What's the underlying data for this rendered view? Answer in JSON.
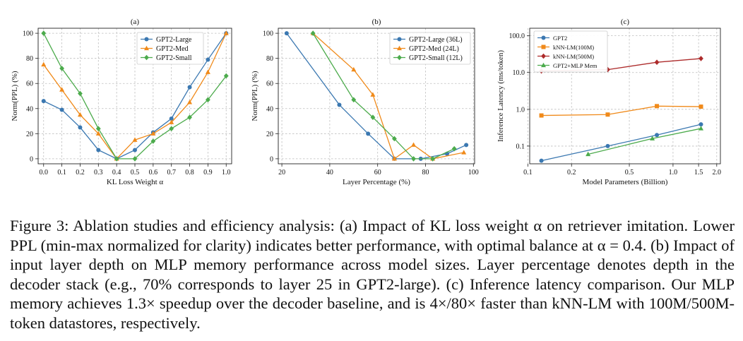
{
  "caption": "Figure 3: Ablation studies and efficiency analysis: (a) Impact of KL loss weight α on retriever imitation. Lower PPL (min-max normalized for clarity) indicates better performance, with optimal balance at α = 0.4. (b) Impact of input layer depth on MLP memory performance across model sizes. Layer percentage denotes depth in the decoder stack (e.g., 70% corresponds to layer 25 in GPT2-large). (c) Inference latency comparison. Our MLP memory achieves 1.3× speedup over the decoder baseline, and is 4×/80× faster than kNN-LM with 100M/500M-token datastores, respectively.",
  "colors": {
    "blue": "#3b78b1",
    "orange": "#f08a1a",
    "green": "#4cab4c",
    "red": "#ad2b2b"
  },
  "chart_data": [
    {
      "type": "line",
      "title": "(a)",
      "xlabel": "KL Loss Weight α",
      "ylabel": "Norm(PPL) (%)",
      "xlim": [
        -0.03,
        1.03
      ],
      "ylim": [
        -4,
        104
      ],
      "xticks": [
        0.0,
        0.1,
        0.2,
        0.3,
        0.4,
        0.5,
        0.6,
        0.7,
        0.8,
        0.9,
        1.0
      ],
      "xtick_labels": [
        "0.0",
        "0.1",
        "0.2",
        "0.3",
        "0.4",
        "0.5",
        "0.6",
        "0.7",
        "0.8",
        "0.9",
        "1.0"
      ],
      "yticks": [
        0,
        20,
        40,
        60,
        80,
        100
      ],
      "ytick_labels": [
        "0",
        "20",
        "40",
        "60",
        "80",
        "100"
      ],
      "grid": true,
      "legend": "top-center",
      "series": [
        {
          "name": "GPT2-Large",
          "color": "#3b78b1",
          "marker": "circle",
          "x": [
            0.0,
            0.1,
            0.2,
            0.3,
            0.4,
            0.5,
            0.6,
            0.7,
            0.8,
            0.9,
            1.0
          ],
          "y": [
            46,
            39,
            25,
            7,
            0,
            7,
            21,
            32,
            57,
            79,
            100
          ]
        },
        {
          "name": "GPT2-Med",
          "color": "#f08a1a",
          "marker": "triangle",
          "x": [
            0.0,
            0.1,
            0.2,
            0.3,
            0.4,
            0.5,
            0.6,
            0.7,
            0.8,
            0.9,
            1.0
          ],
          "y": [
            75,
            55,
            35,
            20,
            0,
            15,
            20,
            29,
            45,
            69,
            100
          ]
        },
        {
          "name": "GPT2-Small",
          "color": "#4cab4c",
          "marker": "diamond",
          "x": [
            0.0,
            0.1,
            0.2,
            0.3,
            0.4,
            0.5,
            0.6,
            0.7,
            0.8,
            0.9,
            1.0
          ],
          "y": [
            100,
            72,
            52,
            24,
            0,
            0,
            14,
            24,
            33,
            47,
            66
          ]
        }
      ]
    },
    {
      "type": "line",
      "title": "(b)",
      "xlabel": "Layer Percentage (%)",
      "ylabel": "Norm(PPL) (%)",
      "xlim": [
        18.5,
        100.5
      ],
      "ylim": [
        -4,
        104
      ],
      "xticks": [
        20,
        40,
        60,
        80,
        100
      ],
      "xtick_labels": [
        "20",
        "40",
        "60",
        "80",
        "100"
      ],
      "yticks": [
        0,
        20,
        40,
        60,
        80,
        100
      ],
      "ytick_labels": [
        "0",
        "20",
        "40",
        "60",
        "80",
        "100"
      ],
      "grid": true,
      "legend": "top-right",
      "series": [
        {
          "name": "GPT2-Large (36L)",
          "color": "#3b78b1",
          "marker": "circle",
          "x": [
            22,
            44,
            56,
            67,
            78,
            89,
            97
          ],
          "y": [
            100,
            43,
            20,
            0,
            0,
            4,
            11
          ]
        },
        {
          "name": "GPT2-Med (24L)",
          "color": "#f08a1a",
          "marker": "triangle",
          "x": [
            33,
            50,
            58,
            67,
            75,
            83,
            96
          ],
          "y": [
            100,
            71,
            51,
            0,
            11,
            0,
            5
          ]
        },
        {
          "name": "GPT2-Small (12L)",
          "color": "#4cab4c",
          "marker": "diamond",
          "x": [
            33,
            50,
            58,
            67,
            75,
            83,
            92
          ],
          "y": [
            100,
            47,
            33,
            16,
            0,
            0,
            8
          ]
        }
      ]
    },
    {
      "type": "line",
      "title": "(c)",
      "xlabel": "Model Parameters (Billion)",
      "ylabel": "Inference Latency (ms/token)",
      "xscale": "log",
      "yscale": "log",
      "xlim": [
        0.103,
        2.12
      ],
      "ylim": [
        0.033,
        160
      ],
      "xticks": [
        0.1,
        0.2,
        0.5,
        1.0,
        1.5,
        2.0
      ],
      "xtick_labels": [
        "0.1",
        "0.2",
        "0.5",
        "1.0",
        "1.5",
        "2.0"
      ],
      "yticks": [
        0.1,
        1.0,
        10.0,
        100.0
      ],
      "ytick_labels": [
        "0.1",
        "1.0",
        "10.0",
        "100.0"
      ],
      "grid": true,
      "legend": "top-left",
      "series": [
        {
          "name": "GPT2",
          "color": "#3b78b1",
          "marker": "circle",
          "x": [
            0.124,
            0.355,
            0.774,
            1.558
          ],
          "y": [
            0.04,
            0.1,
            0.2,
            0.39
          ]
        },
        {
          "name": "kNN-LM(100M)",
          "color": "#f08a1a",
          "marker": "square",
          "x": [
            0.124,
            0.355,
            0.774,
            1.558
          ],
          "y": [
            0.68,
            0.72,
            1.22,
            1.18
          ]
        },
        {
          "name": "kNN-LM(500M)",
          "color": "#ad2b2b",
          "marker": "diamond",
          "x": [
            0.124,
            0.355,
            0.774,
            1.558
          ],
          "y": [
            11,
            12,
            19,
            24
          ]
        },
        {
          "name": "GPT2+MLP Mem",
          "color": "#4cab4c",
          "marker": "triangle",
          "x": [
            0.26,
            0.72,
            1.558
          ],
          "y": [
            0.06,
            0.16,
            0.3
          ]
        }
      ]
    }
  ]
}
